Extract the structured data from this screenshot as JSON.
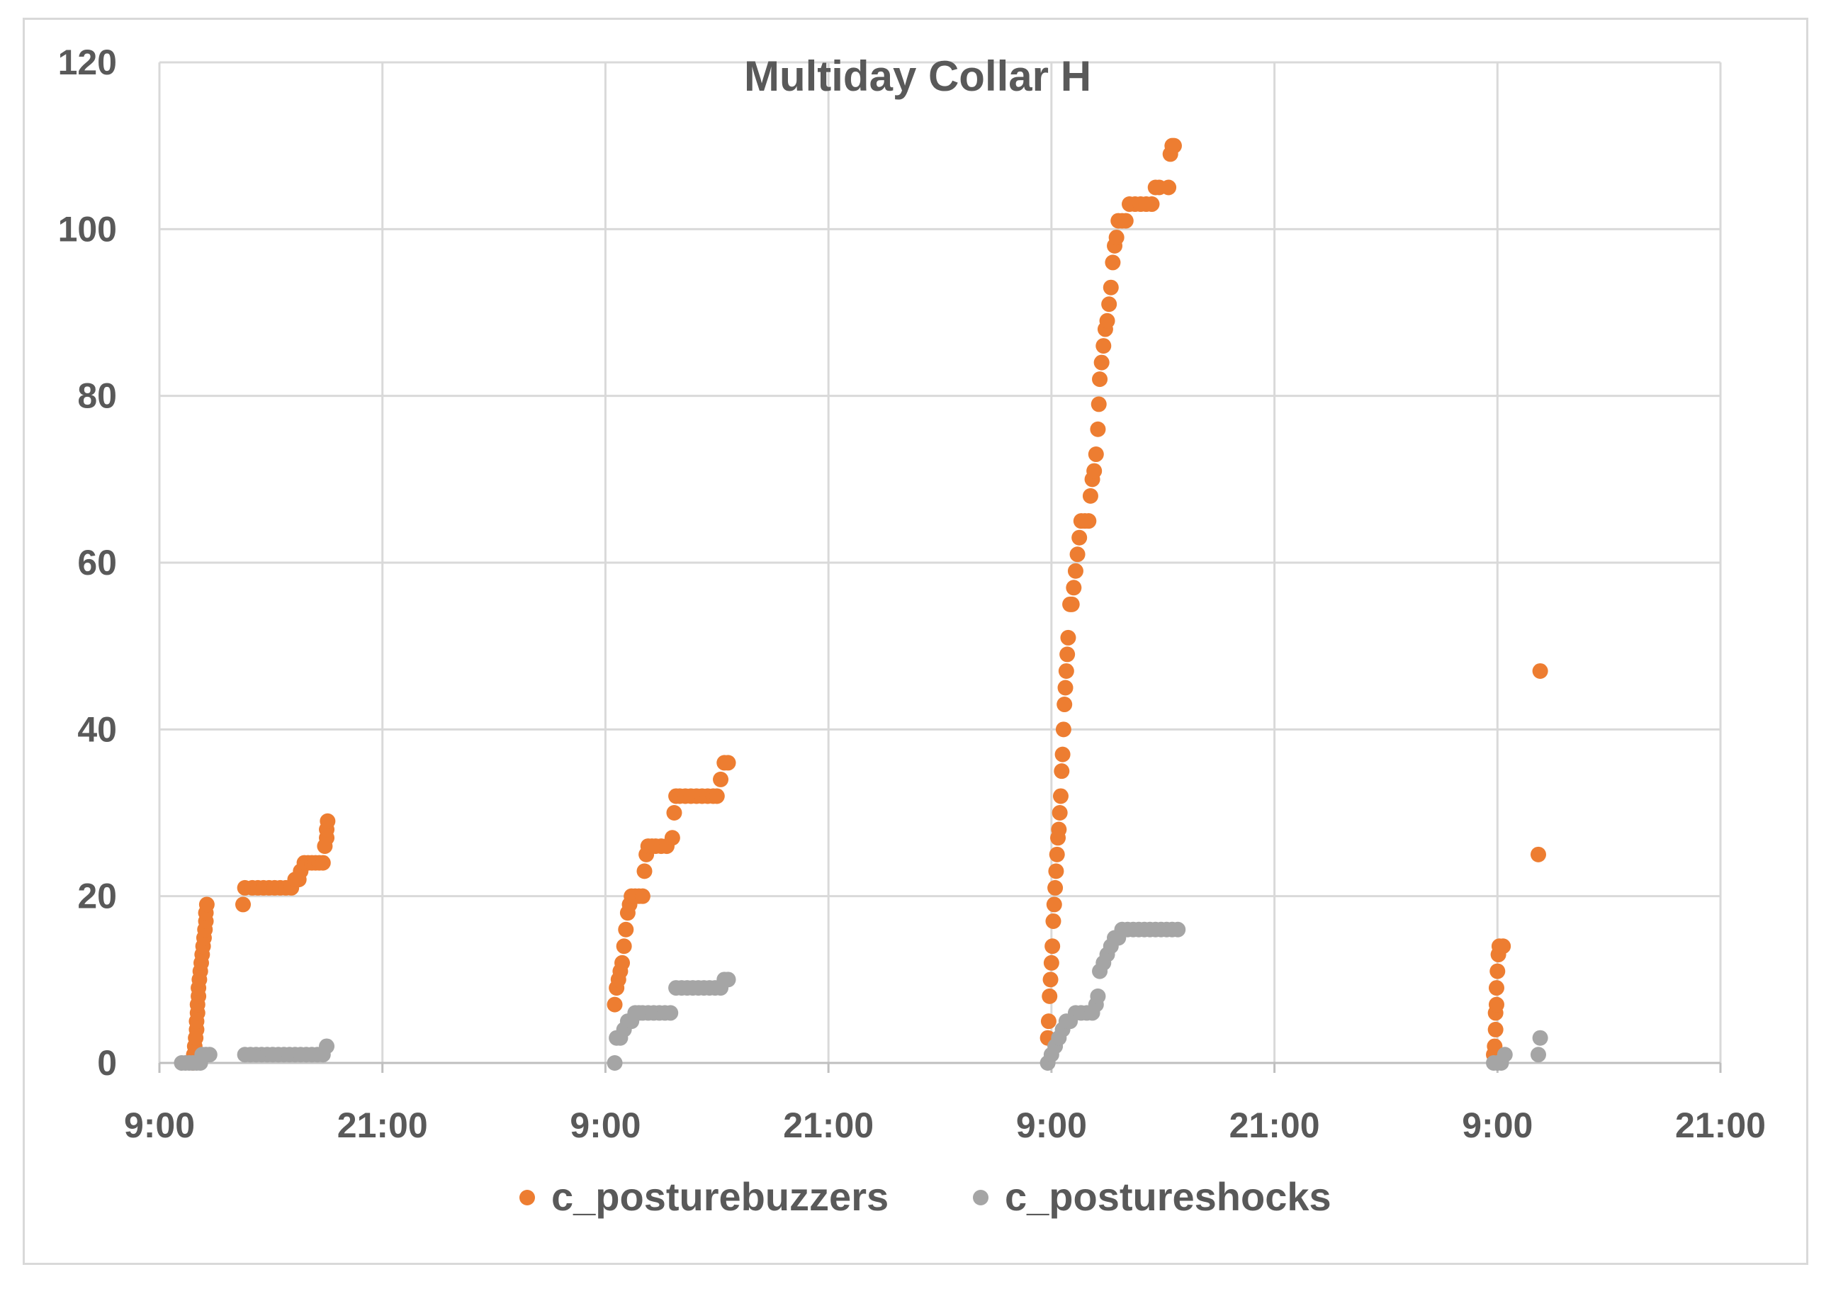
{
  "chart_data": {
    "type": "scatter",
    "title": "Multiday Collar H",
    "xlabel": "",
    "ylabel": "",
    "ylim": [
      0,
      120
    ],
    "y_ticks": [
      0,
      20,
      40,
      60,
      80,
      100,
      120
    ],
    "x_unit": "hours",
    "xlim": [
      9,
      93
    ],
    "x_ticks": [
      {
        "x": 9,
        "label": "9:00"
      },
      {
        "x": 21,
        "label": "21:00"
      },
      {
        "x": 33,
        "label": "9:00"
      },
      {
        "x": 45,
        "label": "21:00"
      },
      {
        "x": 57,
        "label": "9:00"
      },
      {
        "x": 69,
        "label": "21:00"
      },
      {
        "x": 81,
        "label": "9:00"
      },
      {
        "x": 93,
        "label": "21:00"
      }
    ],
    "grid": true,
    "legend_position": "bottom",
    "series": [
      {
        "name": "c_posturebuzzers",
        "color": "#ED7D31",
        "points": [
          [
            10.8,
            0
          ],
          [
            10.85,
            1
          ],
          [
            10.9,
            2
          ],
          [
            10.95,
            3
          ],
          [
            11.0,
            4
          ],
          [
            11.0,
            5
          ],
          [
            11.05,
            6
          ],
          [
            11.05,
            7
          ],
          [
            11.1,
            8
          ],
          [
            11.1,
            9
          ],
          [
            11.15,
            10
          ],
          [
            11.2,
            11
          ],
          [
            11.25,
            12
          ],
          [
            11.3,
            13
          ],
          [
            11.35,
            14
          ],
          [
            11.4,
            15
          ],
          [
            11.45,
            16
          ],
          [
            11.5,
            17
          ],
          [
            11.5,
            18
          ],
          [
            11.55,
            19
          ],
          [
            13.5,
            19
          ],
          [
            13.6,
            21
          ],
          [
            14.0,
            21
          ],
          [
            14.3,
            21
          ],
          [
            14.6,
            21
          ],
          [
            14.9,
            21
          ],
          [
            15.2,
            21
          ],
          [
            15.5,
            21
          ],
          [
            15.8,
            21
          ],
          [
            16.1,
            21
          ],
          [
            16.3,
            22
          ],
          [
            16.5,
            22
          ],
          [
            16.6,
            23
          ],
          [
            16.8,
            24
          ],
          [
            17.0,
            24
          ],
          [
            17.2,
            24
          ],
          [
            17.4,
            24
          ],
          [
            17.6,
            24
          ],
          [
            17.8,
            24
          ],
          [
            17.9,
            26
          ],
          [
            18.0,
            27
          ],
          [
            18.0,
            28
          ],
          [
            18.05,
            29
          ],
          [
            33.5,
            7
          ],
          [
            33.6,
            9
          ],
          [
            33.7,
            10
          ],
          [
            33.8,
            11
          ],
          [
            33.9,
            12
          ],
          [
            34.0,
            14
          ],
          [
            34.1,
            16
          ],
          [
            34.2,
            18
          ],
          [
            34.3,
            19
          ],
          [
            34.4,
            20
          ],
          [
            34.6,
            20
          ],
          [
            34.8,
            20
          ],
          [
            35.0,
            20
          ],
          [
            35.1,
            23
          ],
          [
            35.2,
            25
          ],
          [
            35.3,
            26
          ],
          [
            35.5,
            26
          ],
          [
            35.7,
            26
          ],
          [
            36.0,
            26
          ],
          [
            36.3,
            26
          ],
          [
            36.6,
            27
          ],
          [
            36.7,
            30
          ],
          [
            36.8,
            32
          ],
          [
            37.0,
            32
          ],
          [
            37.3,
            32
          ],
          [
            37.6,
            32
          ],
          [
            37.9,
            32
          ],
          [
            38.2,
            32
          ],
          [
            38.5,
            32
          ],
          [
            38.8,
            32
          ],
          [
            39.0,
            32
          ],
          [
            39.2,
            34
          ],
          [
            39.4,
            36
          ],
          [
            39.6,
            36
          ],
          [
            56.8,
            3
          ],
          [
            56.85,
            5
          ],
          [
            56.9,
            8
          ],
          [
            56.95,
            10
          ],
          [
            57.0,
            12
          ],
          [
            57.05,
            14
          ],
          [
            57.1,
            17
          ],
          [
            57.15,
            19
          ],
          [
            57.2,
            21
          ],
          [
            57.25,
            23
          ],
          [
            57.3,
            25
          ],
          [
            57.35,
            27
          ],
          [
            57.4,
            28
          ],
          [
            57.45,
            30
          ],
          [
            57.5,
            32
          ],
          [
            57.55,
            35
          ],
          [
            57.6,
            37
          ],
          [
            57.65,
            40
          ],
          [
            57.7,
            43
          ],
          [
            57.75,
            45
          ],
          [
            57.8,
            47
          ],
          [
            57.85,
            49
          ],
          [
            57.9,
            51
          ],
          [
            58.0,
            55
          ],
          [
            58.1,
            55
          ],
          [
            58.2,
            57
          ],
          [
            58.3,
            59
          ],
          [
            58.4,
            61
          ],
          [
            58.5,
            63
          ],
          [
            58.6,
            65
          ],
          [
            58.8,
            65
          ],
          [
            59.0,
            65
          ],
          [
            59.1,
            68
          ],
          [
            59.2,
            70
          ],
          [
            59.3,
            71
          ],
          [
            59.4,
            73
          ],
          [
            59.5,
            76
          ],
          [
            59.55,
            79
          ],
          [
            59.6,
            82
          ],
          [
            59.7,
            84
          ],
          [
            59.8,
            86
          ],
          [
            59.9,
            88
          ],
          [
            60.0,
            89
          ],
          [
            60.1,
            91
          ],
          [
            60.2,
            93
          ],
          [
            60.3,
            96
          ],
          [
            60.4,
            98
          ],
          [
            60.5,
            99
          ],
          [
            60.6,
            101
          ],
          [
            60.8,
            101
          ],
          [
            61.0,
            101
          ],
          [
            61.2,
            103
          ],
          [
            61.5,
            103
          ],
          [
            61.8,
            103
          ],
          [
            62.1,
            103
          ],
          [
            62.4,
            103
          ],
          [
            62.6,
            105
          ],
          [
            62.8,
            105
          ],
          [
            63.3,
            105
          ],
          [
            63.4,
            109
          ],
          [
            63.5,
            110
          ],
          [
            63.6,
            110
          ],
          [
            80.8,
            1
          ],
          [
            80.85,
            2
          ],
          [
            80.9,
            4
          ],
          [
            80.9,
            6
          ],
          [
            80.95,
            7
          ],
          [
            80.95,
            9
          ],
          [
            81.0,
            11
          ],
          [
            81.05,
            13
          ],
          [
            81.1,
            14
          ],
          [
            81.3,
            14
          ],
          [
            83.2,
            25
          ],
          [
            83.3,
            47
          ]
        ]
      },
      {
        "name": "c_postureshocks",
        "color": "#A5A5A5",
        "points": [
          [
            10.2,
            0
          ],
          [
            10.4,
            0
          ],
          [
            10.6,
            0
          ],
          [
            10.8,
            0
          ],
          [
            11.0,
            0
          ],
          [
            11.2,
            0
          ],
          [
            11.3,
            1
          ],
          [
            11.5,
            1
          ],
          [
            11.7,
            1
          ],
          [
            13.6,
            1
          ],
          [
            13.9,
            1
          ],
          [
            14.2,
            1
          ],
          [
            14.5,
            1
          ],
          [
            14.8,
            1
          ],
          [
            15.1,
            1
          ],
          [
            15.4,
            1
          ],
          [
            15.7,
            1
          ],
          [
            16.0,
            1
          ],
          [
            16.3,
            1
          ],
          [
            16.6,
            1
          ],
          [
            16.9,
            1
          ],
          [
            17.2,
            1
          ],
          [
            17.5,
            1
          ],
          [
            17.8,
            1
          ],
          [
            18.0,
            2
          ],
          [
            33.5,
            0
          ],
          [
            33.6,
            3
          ],
          [
            33.8,
            3
          ],
          [
            34.0,
            4
          ],
          [
            34.2,
            5
          ],
          [
            34.4,
            5
          ],
          [
            34.6,
            6
          ],
          [
            34.8,
            6
          ],
          [
            35.0,
            6
          ],
          [
            35.3,
            6
          ],
          [
            35.6,
            6
          ],
          [
            35.9,
            6
          ],
          [
            36.2,
            6
          ],
          [
            36.5,
            6
          ],
          [
            36.8,
            9
          ],
          [
            37.1,
            9
          ],
          [
            37.4,
            9
          ],
          [
            37.7,
            9
          ],
          [
            38.0,
            9
          ],
          [
            38.3,
            9
          ],
          [
            38.6,
            9
          ],
          [
            38.9,
            9
          ],
          [
            39.2,
            9
          ],
          [
            39.4,
            10
          ],
          [
            39.6,
            10
          ],
          [
            56.8,
            0
          ],
          [
            57.0,
            1
          ],
          [
            57.2,
            2
          ],
          [
            57.4,
            3
          ],
          [
            57.6,
            4
          ],
          [
            57.8,
            5
          ],
          [
            58.0,
            5
          ],
          [
            58.3,
            6
          ],
          [
            58.6,
            6
          ],
          [
            58.9,
            6
          ],
          [
            59.2,
            6
          ],
          [
            59.4,
            7
          ],
          [
            59.5,
            8
          ],
          [
            59.6,
            11
          ],
          [
            59.8,
            12
          ],
          [
            60.0,
            13
          ],
          [
            60.2,
            14
          ],
          [
            60.4,
            15
          ],
          [
            60.6,
            15
          ],
          [
            60.8,
            16
          ],
          [
            61.1,
            16
          ],
          [
            61.4,
            16
          ],
          [
            61.7,
            16
          ],
          [
            62.0,
            16
          ],
          [
            62.3,
            16
          ],
          [
            62.6,
            16
          ],
          [
            62.9,
            16
          ],
          [
            63.2,
            16
          ],
          [
            63.5,
            16
          ],
          [
            63.8,
            16
          ],
          [
            80.8,
            0
          ],
          [
            81.0,
            0
          ],
          [
            81.2,
            0
          ],
          [
            81.4,
            1
          ],
          [
            83.2,
            1
          ],
          [
            83.3,
            3
          ]
        ]
      }
    ]
  }
}
